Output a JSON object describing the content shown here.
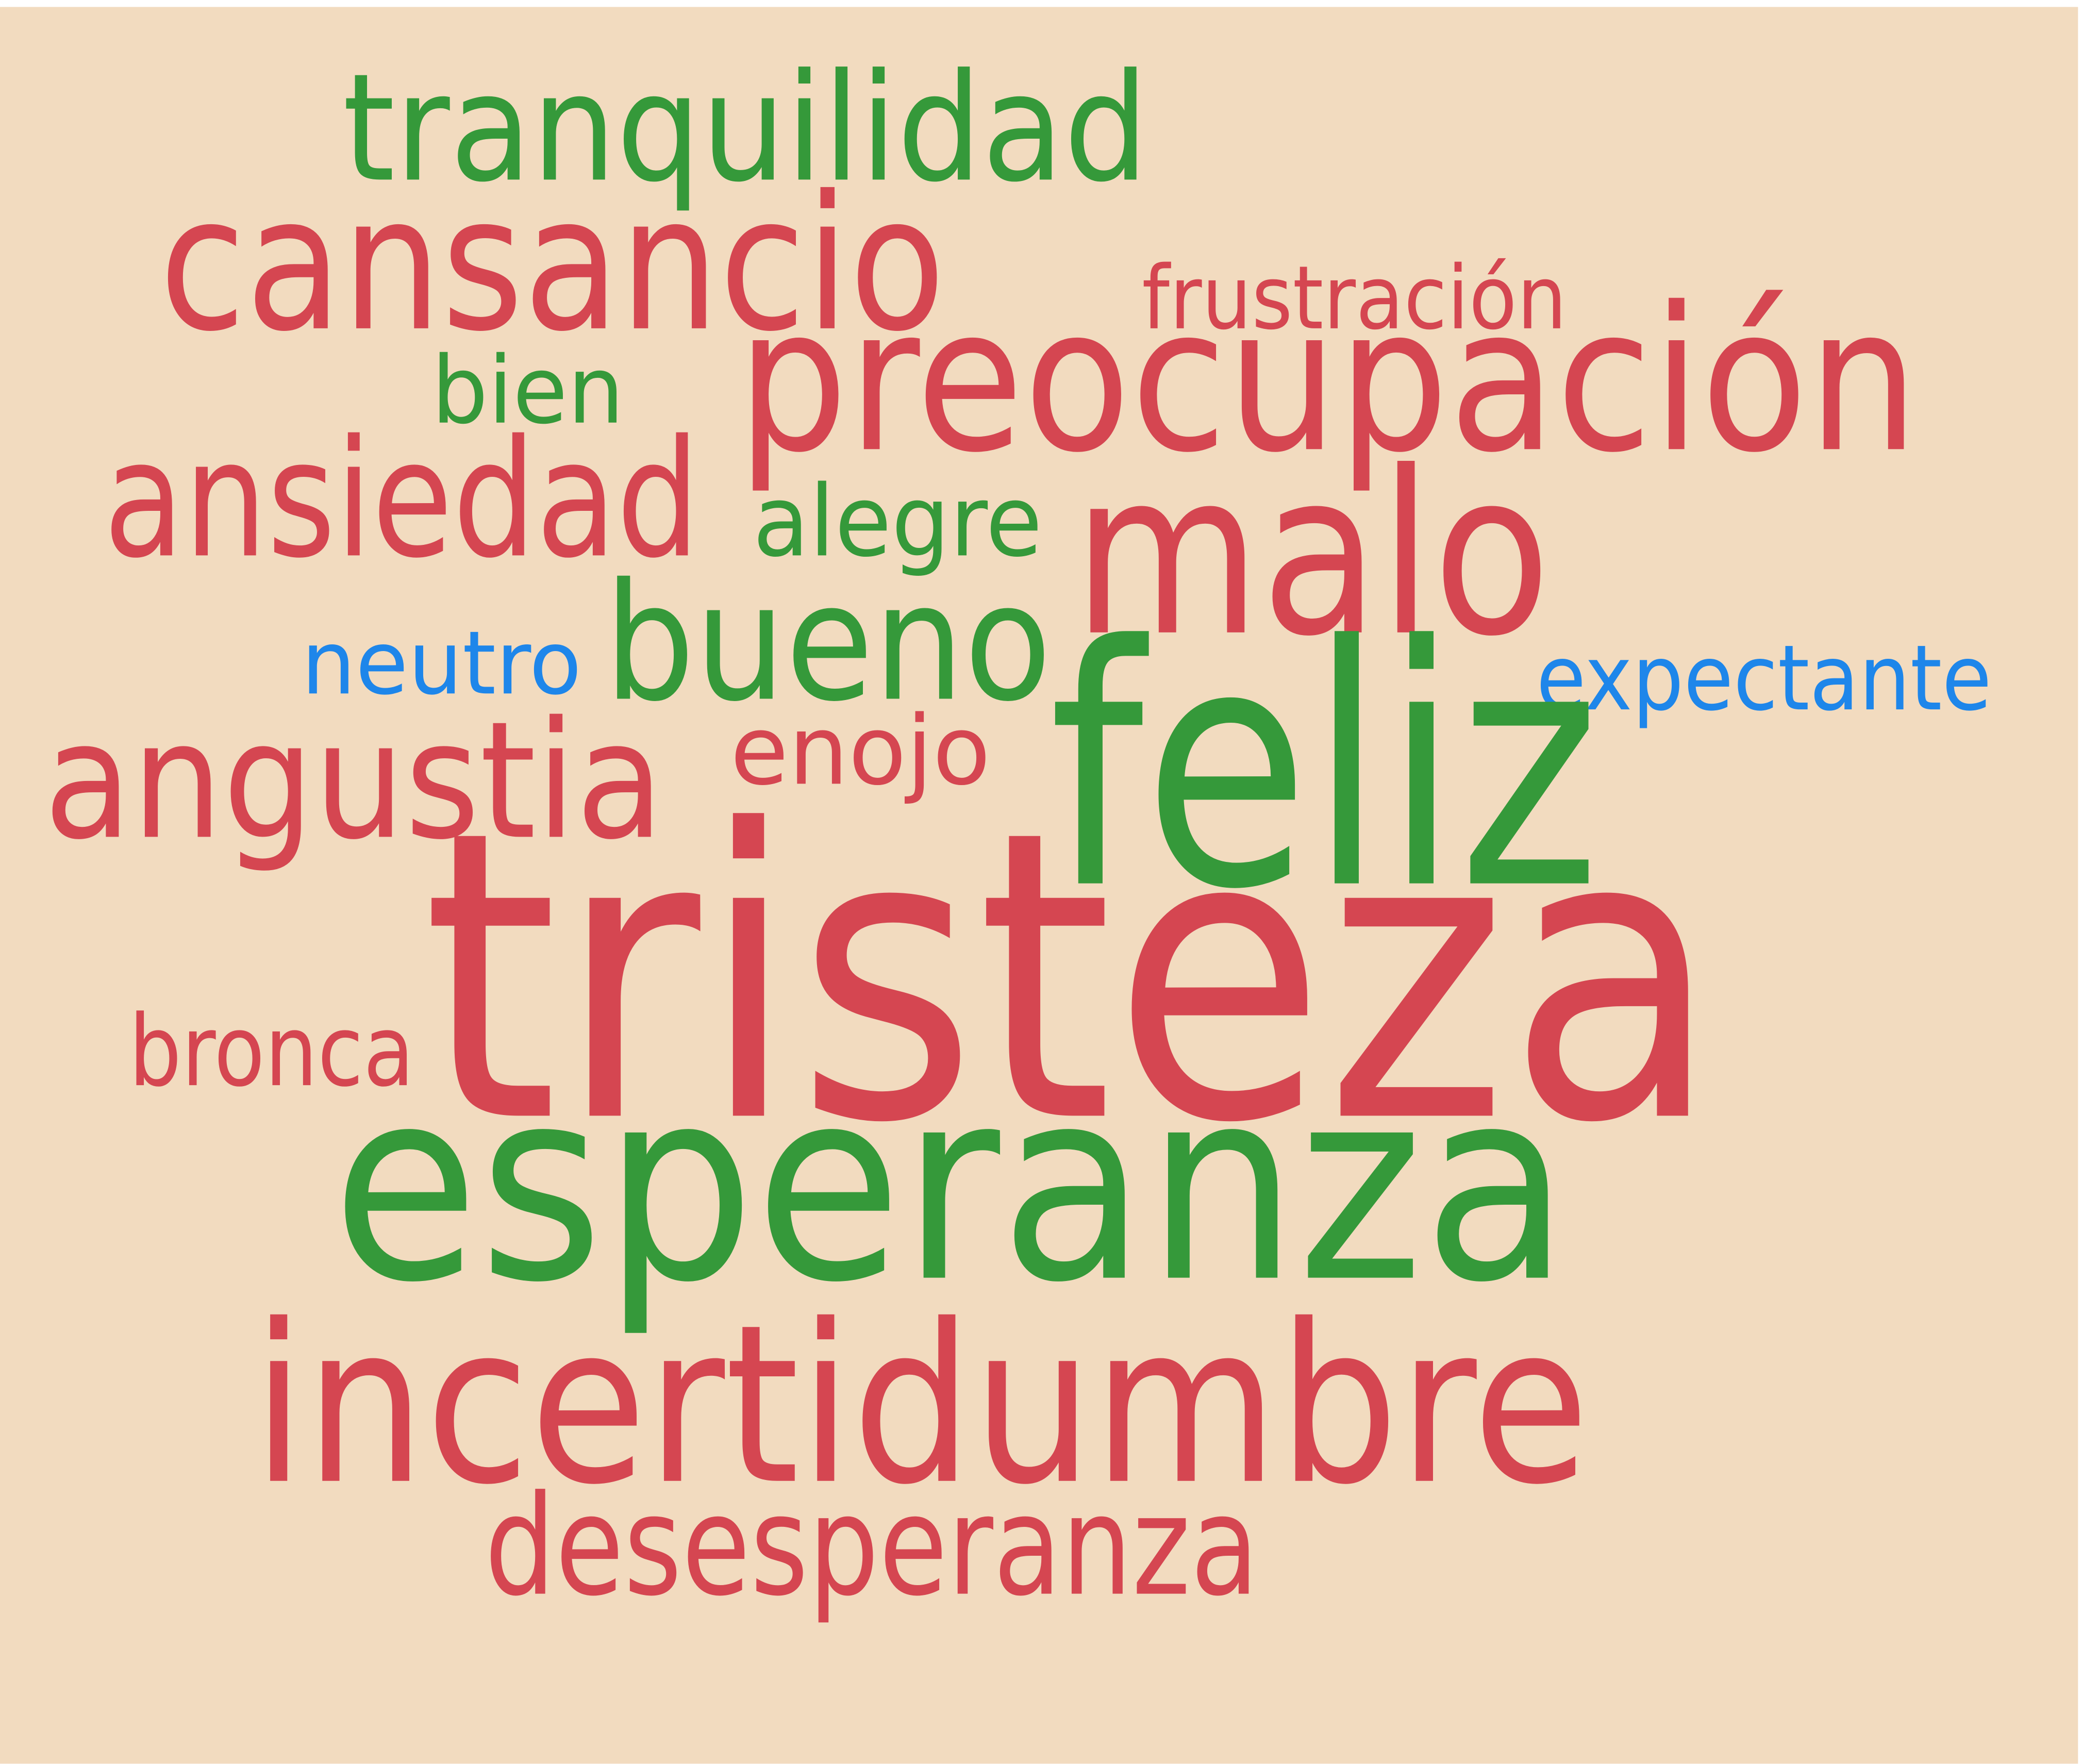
{
  "words": [
    {
      "text": "tranquilidad",
      "color": "#35993a"
    },
    {
      "text": "cansancio",
      "color": "#d54651"
    },
    {
      "text": "frustración",
      "color": "#d54651"
    },
    {
      "text": "bien",
      "color": "#35993a"
    },
    {
      "text": "preocupación",
      "color": "#d54651"
    },
    {
      "text": "ansiedad",
      "color": "#d54651"
    },
    {
      "text": "alegre",
      "color": "#35993a"
    },
    {
      "text": "malo",
      "color": "#d54651"
    },
    {
      "text": "neutro",
      "color": "#1e86ea"
    },
    {
      "text": "bueno",
      "color": "#35993a"
    },
    {
      "text": "expectante",
      "color": "#1e86ea"
    },
    {
      "text": "angustia",
      "color": "#d54651"
    },
    {
      "text": "enojo",
      "color": "#d54651"
    },
    {
      "text": "feliz",
      "color": "#35993a"
    },
    {
      "text": "tristeza",
      "color": "#d54651"
    },
    {
      "text": "bronca",
      "color": "#d54651"
    },
    {
      "text": "esperanza",
      "color": "#35993a"
    },
    {
      "text": "incertidumbre",
      "color": "#d54651"
    },
    {
      "text": "desesperanza",
      "color": "#d54651"
    }
  ]
}
